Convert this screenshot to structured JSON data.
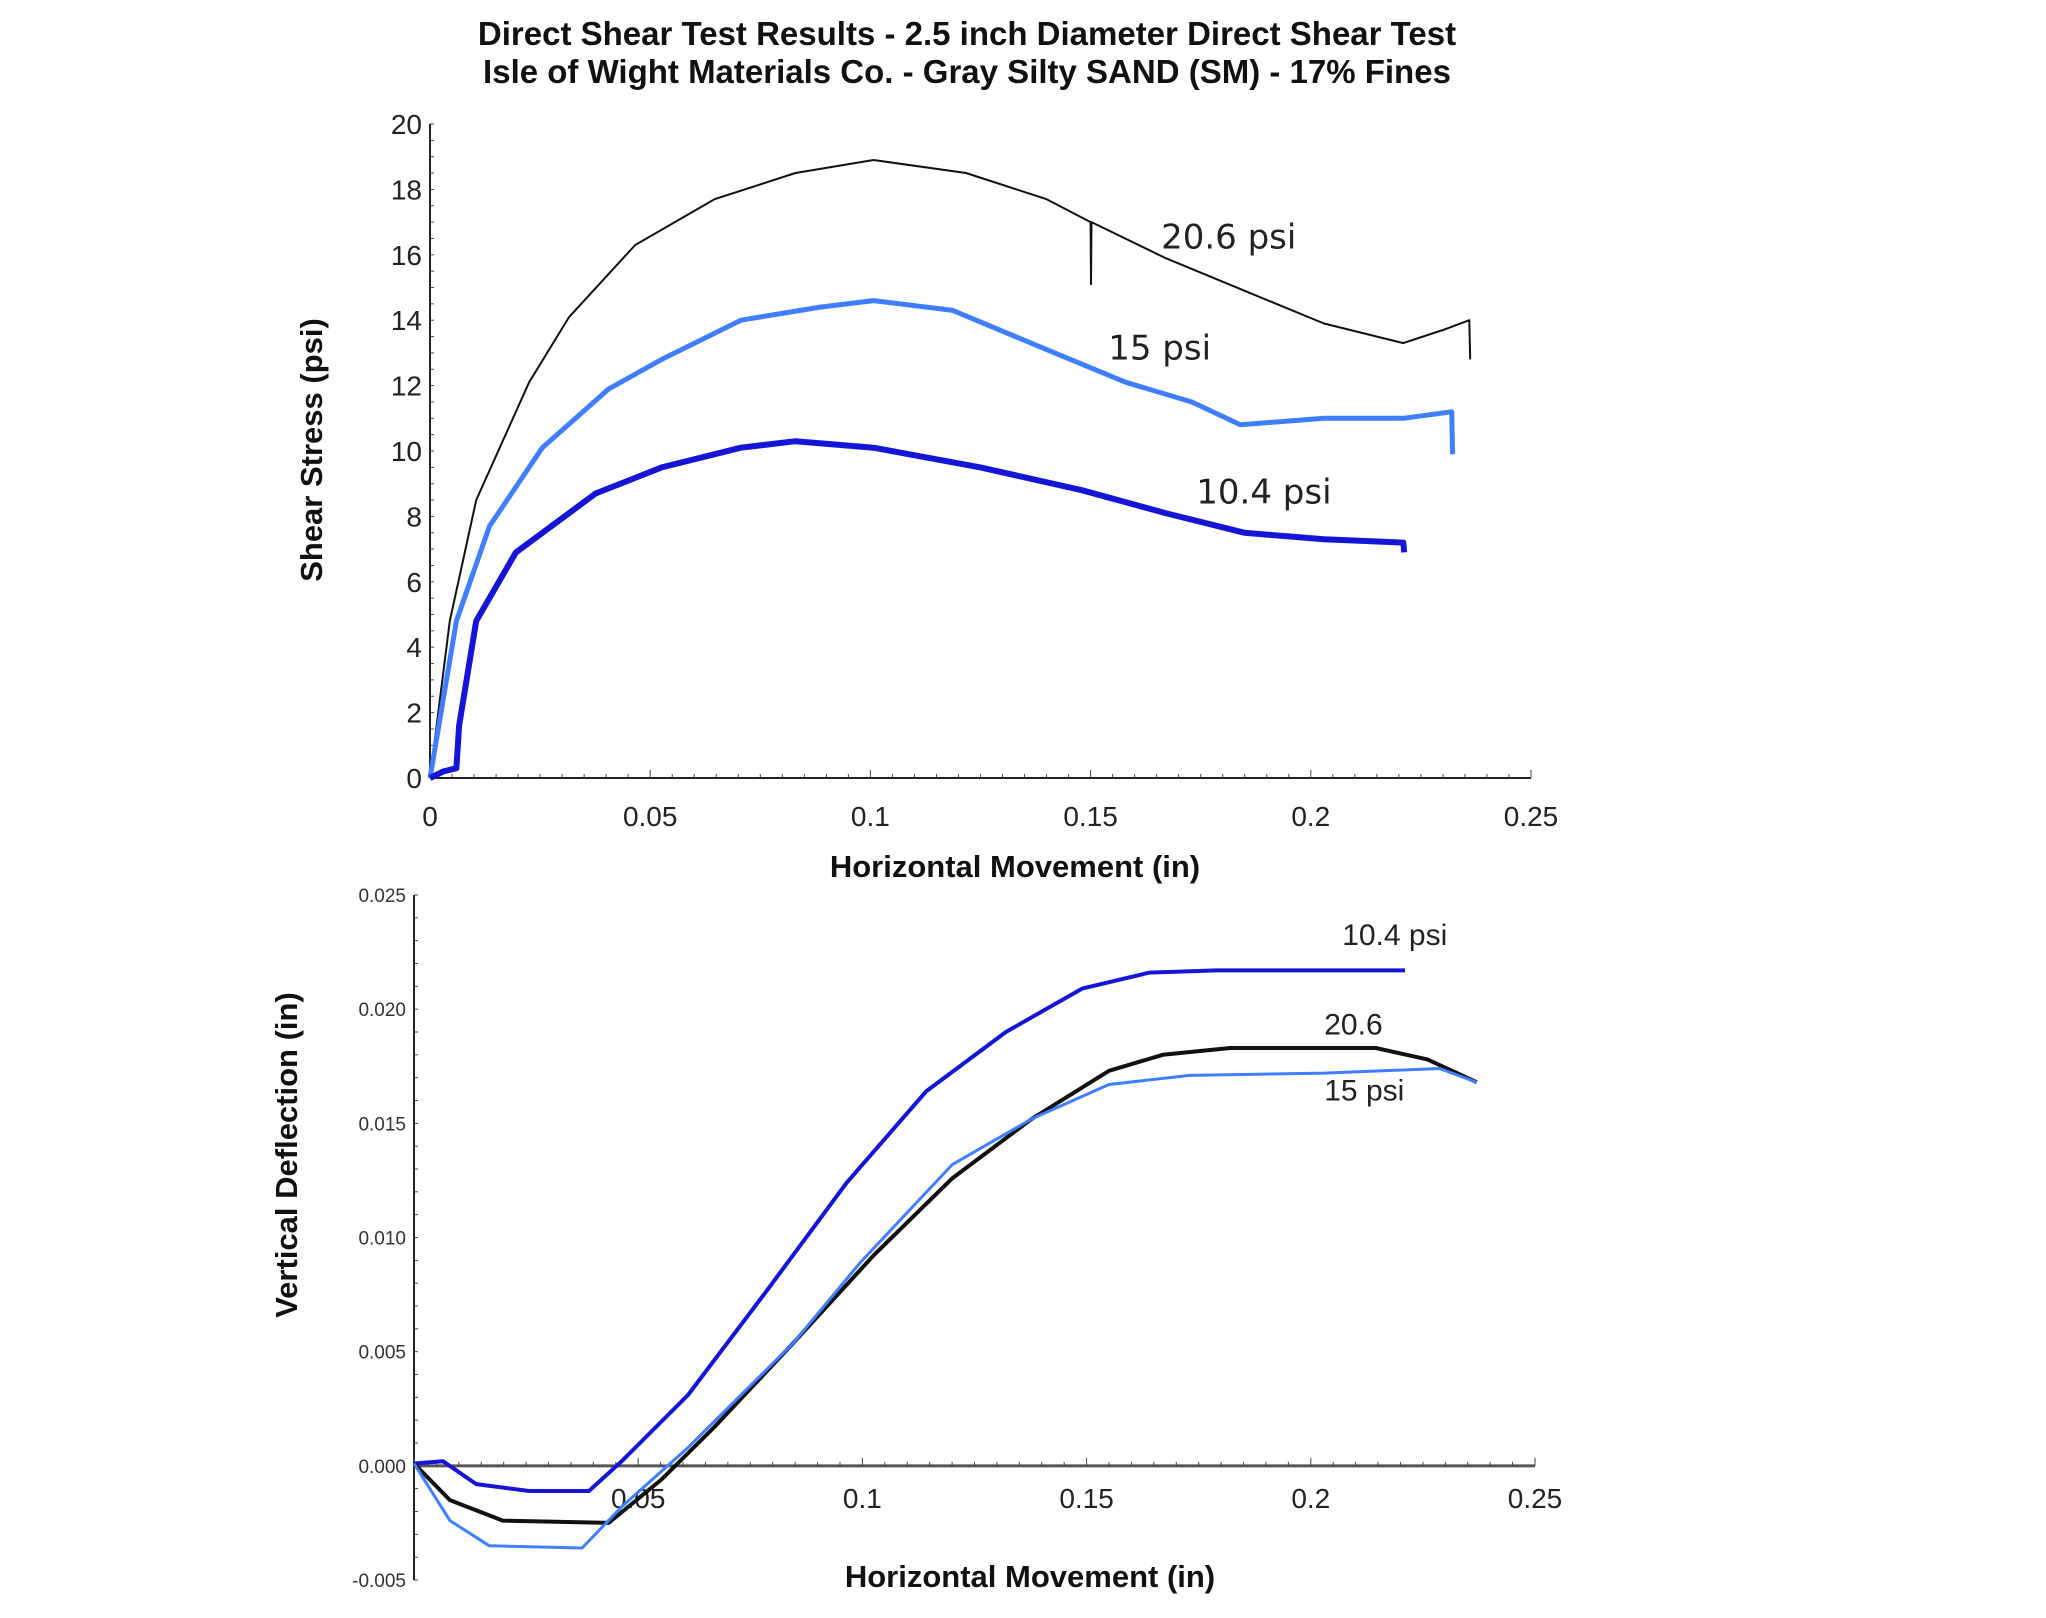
{
  "title_line1": "Direct Shear Test Results - 2.5 inch Diameter Direct Shear Test",
  "title_line2": "Isle of Wight Materials Co. - Gray Silty SAND (SM) - 17% Fines",
  "colors": {
    "black": "#111111",
    "light_blue": "#3f7fff",
    "dark_blue": "#1515d8"
  },
  "chart_data": [
    {
      "type": "line",
      "xlabel": "Horizontal Movement (in)",
      "ylabel": "Shear Stress (psi)",
      "xlim": [
        0,
        0.25
      ],
      "ylim": [
        0,
        20
      ],
      "xticks": [
        "0",
        "0.05",
        "0.1",
        "0.15",
        "0.2",
        "0.25"
      ],
      "yticks": [
        "0",
        "2",
        "4",
        "6",
        "8",
        "10",
        "12",
        "14",
        "16",
        "18",
        "20"
      ],
      "grid": false,
      "series": [
        {
          "name": "20.6 psi",
          "color": "#111111",
          "x": [
            0,
            0.0045,
            0.0105,
            0.0225,
            0.0316,
            0.0466,
            0.0646,
            0.083,
            0.1007,
            0.1217,
            0.14,
            0.15,
            0.1501,
            0.1502,
            0.167,
            0.185,
            0.203,
            0.221,
            0.23,
            0.236,
            0.2362
          ],
          "y": [
            0,
            4.8,
            8.5,
            12.1,
            14.1,
            16.3,
            17.7,
            18.5,
            18.9,
            18.5,
            17.7,
            17.0,
            15.1,
            17.0,
            15.9,
            14.9,
            13.9,
            13.3,
            13.7,
            14.0,
            12.8
          ]
        },
        {
          "name": "15 psi",
          "color": "#3f7fff",
          "x": [
            0,
            0.0015,
            0.006,
            0.0135,
            0.0255,
            0.0406,
            0.0526,
            0.0706,
            0.0886,
            0.1007,
            0.1187,
            0.14,
            0.158,
            0.173,
            0.184,
            0.203,
            0.221,
            0.232,
            0.2322
          ],
          "y": [
            0,
            1.2,
            4.8,
            7.7,
            10.1,
            11.9,
            12.8,
            14.0,
            14.4,
            14.6,
            14.3,
            13.1,
            12.1,
            11.5,
            10.8,
            11.0,
            11.0,
            11.2,
            9.9
          ]
        },
        {
          "name": "10.4 psi",
          "color": "#1515d8",
          "x": [
            0,
            0.003,
            0.006,
            0.0066,
            0.0105,
            0.0195,
            0.0376,
            0.0526,
            0.0706,
            0.083,
            0.1007,
            0.125,
            0.148,
            0.167,
            0.185,
            0.203,
            0.221,
            0.2212
          ],
          "y": [
            0,
            0.2,
            0.3,
            1.6,
            4.8,
            6.9,
            8.7,
            9.5,
            10.1,
            10.3,
            10.1,
            9.5,
            8.8,
            8.1,
            7.5,
            7.3,
            7.2,
            6.9
          ]
        }
      ],
      "annotations": [
        {
          "text": "20.6 psi",
          "x": 0.166,
          "y": 16.2
        },
        {
          "text": "15 psi",
          "x": 0.154,
          "y": 12.8
        },
        {
          "text": "10.4 psi",
          "x": 0.174,
          "y": 8.4
        }
      ]
    },
    {
      "type": "line",
      "xlabel": "Horizontal Movement (in)",
      "ylabel": "Vertical Deflection (in)",
      "xlim": [
        0,
        0.25
      ],
      "ylim": [
        -0.005,
        0.025
      ],
      "xticks": [
        "0.05",
        "0.1",
        "0.15",
        "0.2",
        "0.25"
      ],
      "yticks": [
        "-0.005",
        "0.000",
        "0.005",
        "0.010",
        "0.015",
        "0.020",
        "0.025"
      ],
      "grid": false,
      "series": [
        {
          "name": "10.4 psi",
          "color": "#1515d8",
          "x": [
            0,
            0.0065,
            0.0139,
            0.0257,
            0.039,
            0.0463,
            0.0611,
            0.0788,
            0.0965,
            0.1142,
            0.132,
            0.149,
            0.164,
            0.179,
            0.203,
            0.221
          ],
          "y": [
            0.0001,
            0.0002,
            -0.0008,
            -0.0011,
            -0.0011,
            0.0002,
            0.0031,
            0.0077,
            0.0124,
            0.0164,
            0.019,
            0.0209,
            0.0216,
            0.0217,
            0.0217,
            0.0217
          ]
        },
        {
          "name": "20.6",
          "color": "#111111",
          "x": [
            0,
            0.008,
            0.0198,
            0.0434,
            0.0552,
            0.067,
            0.0847,
            0.1024,
            0.1201,
            0.1378,
            0.155,
            0.167,
            0.182,
            0.2145,
            0.226,
            0.237
          ],
          "y": [
            0.0001,
            -0.0015,
            -0.0024,
            -0.0025,
            -0.0006,
            0.0017,
            0.0054,
            0.0092,
            0.0126,
            0.0152,
            0.0173,
            0.018,
            0.0183,
            0.0183,
            0.0178,
            0.0168
          ]
        },
        {
          "name": "15 psi",
          "color": "#3f7fff",
          "x": [
            0,
            0.008,
            0.0168,
            0.0375,
            0.0463,
            0.0611,
            0.0847,
            0.0995,
            0.1201,
            0.1378,
            0.155,
            0.173,
            0.203,
            0.2287,
            0.237
          ],
          "y": [
            0.0001,
            -0.0024,
            -0.0035,
            -0.0036,
            -0.0018,
            0.0008,
            0.0054,
            0.0089,
            0.0132,
            0.0152,
            0.0167,
            0.0171,
            0.0172,
            0.0174,
            0.0168
          ]
        }
      ],
      "annotations": [
        {
          "text": "10.4 psi",
          "x": 0.207,
          "y": 0.0228
        },
        {
          "text": "20.6",
          "x": 0.203,
          "y": 0.0189
        },
        {
          "text": "15 psi",
          "x": 0.203,
          "y": 0.016
        }
      ]
    }
  ]
}
